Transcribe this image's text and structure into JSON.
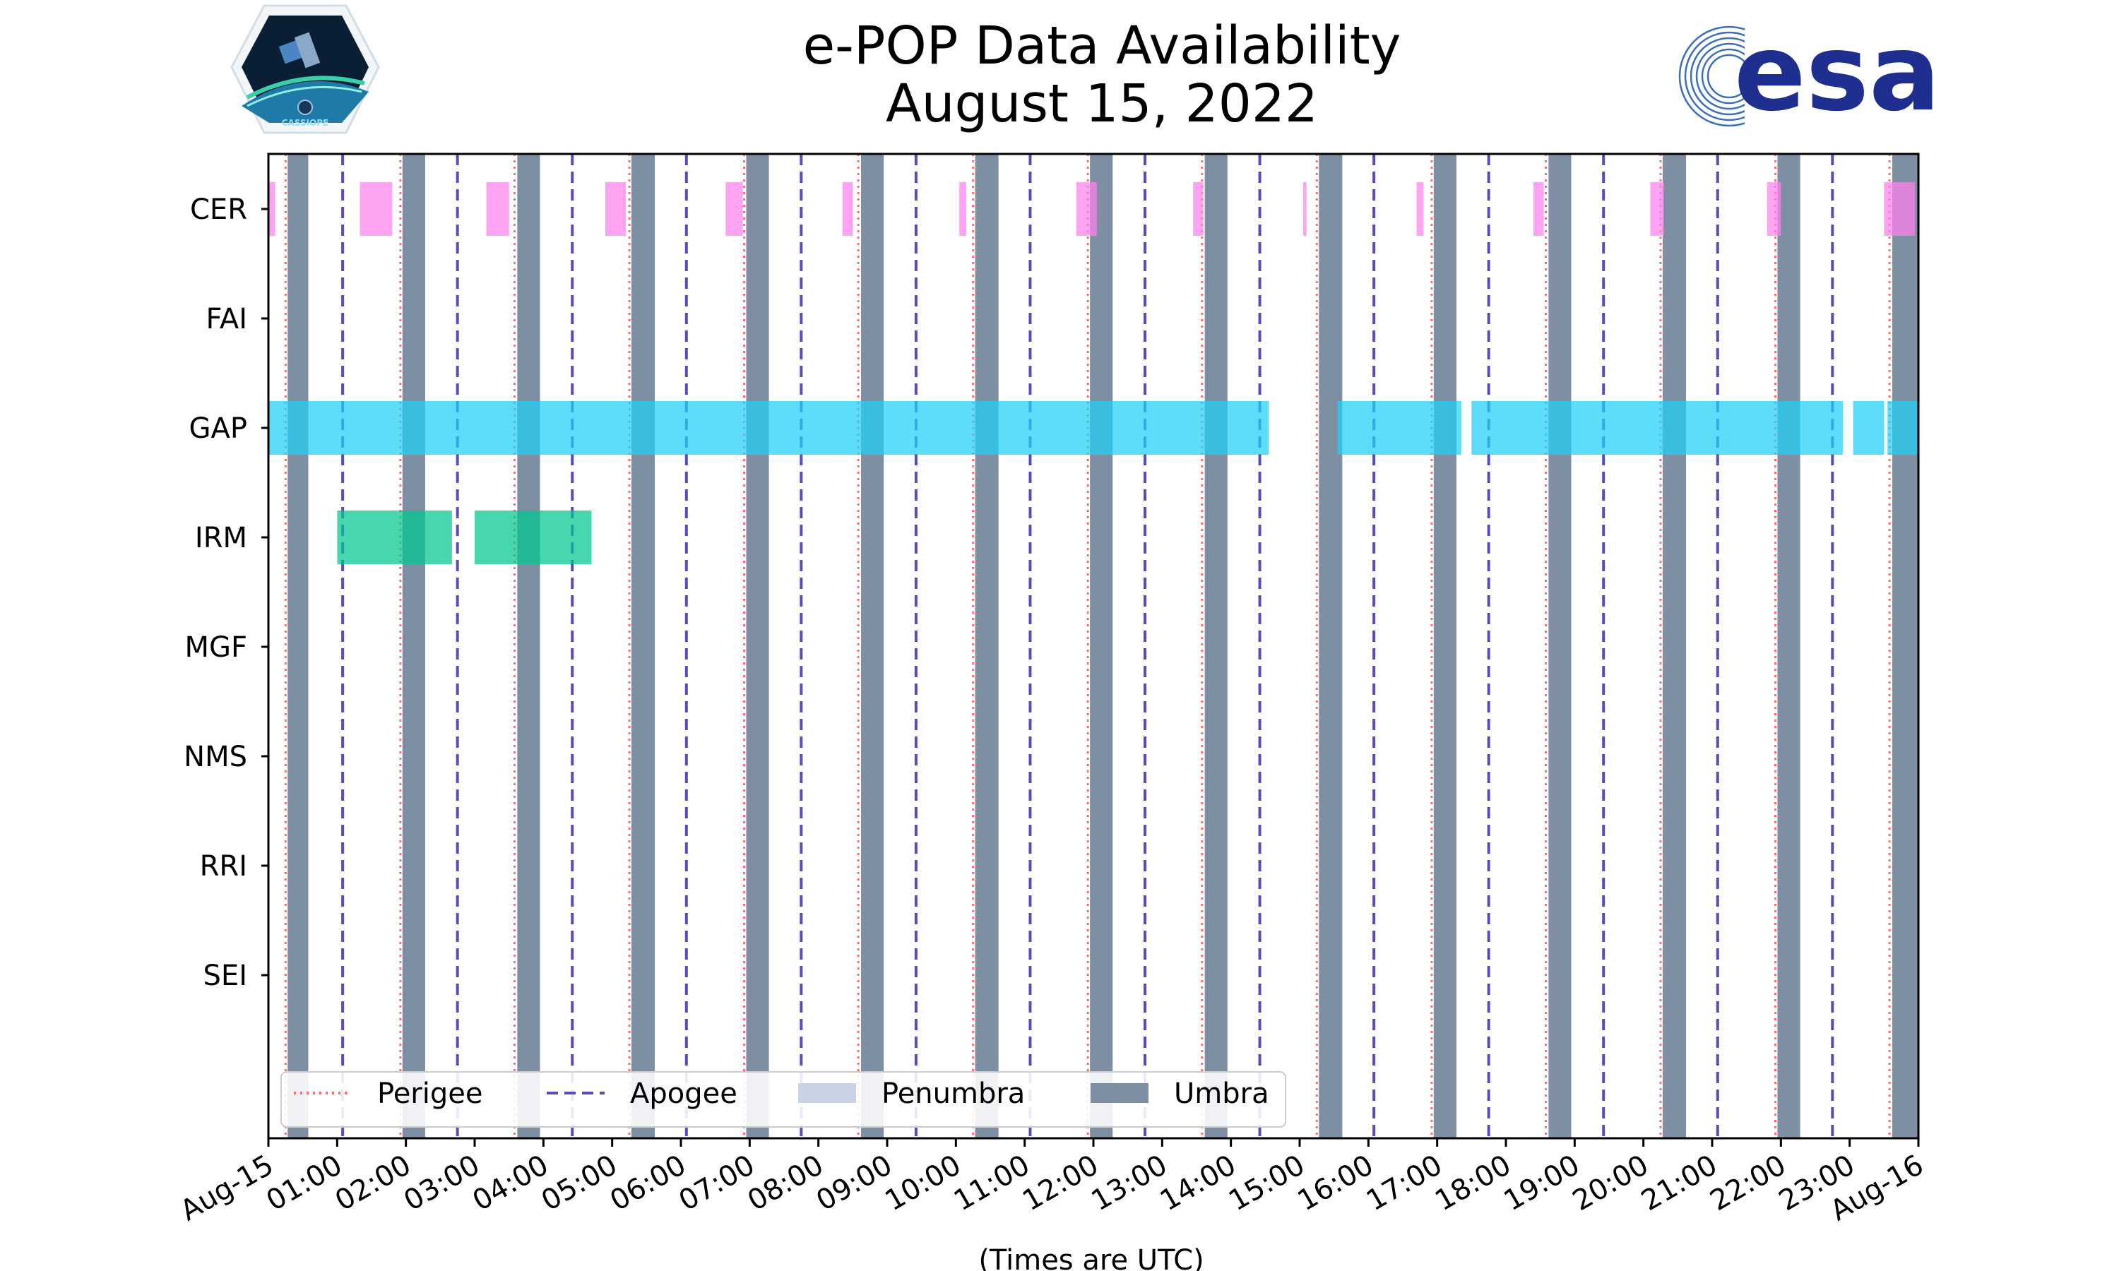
{
  "chart_data": {
    "type": "timeline",
    "title": [
      "e-POP Data Availability",
      "August 15, 2022"
    ],
    "xlabel": "(Times are UTC)",
    "ylabel": "",
    "x_unit": "hours UTC",
    "xlim": [
      0,
      24
    ],
    "x_ticks": [
      {
        "value": 0,
        "label": "Aug-15"
      },
      {
        "value": 1,
        "label": "01:00"
      },
      {
        "value": 2,
        "label": "02:00"
      },
      {
        "value": 3,
        "label": "03:00"
      },
      {
        "value": 4,
        "label": "04:00"
      },
      {
        "value": 5,
        "label": "05:00"
      },
      {
        "value": 6,
        "label": "06:00"
      },
      {
        "value": 7,
        "label": "07:00"
      },
      {
        "value": 8,
        "label": "08:00"
      },
      {
        "value": 9,
        "label": "09:00"
      },
      {
        "value": 10,
        "label": "10:00"
      },
      {
        "value": 11,
        "label": "11:00"
      },
      {
        "value": 12,
        "label": "12:00"
      },
      {
        "value": 13,
        "label": "13:00"
      },
      {
        "value": 14,
        "label": "14:00"
      },
      {
        "value": 15,
        "label": "15:00"
      },
      {
        "value": 16,
        "label": "16:00"
      },
      {
        "value": 17,
        "label": "17:00"
      },
      {
        "value": 18,
        "label": "18:00"
      },
      {
        "value": 19,
        "label": "19:00"
      },
      {
        "value": 20,
        "label": "20:00"
      },
      {
        "value": 21,
        "label": "21:00"
      },
      {
        "value": 22,
        "label": "22:00"
      },
      {
        "value": 23,
        "label": "23:00"
      },
      {
        "value": 24,
        "label": "Aug-16"
      }
    ],
    "categories": [
      "CER",
      "FAI",
      "GAP",
      "IRM",
      "MGF",
      "NMS",
      "RRI",
      "SEI"
    ],
    "series": [
      {
        "name": "CER",
        "color": "#ff80ee",
        "segments": [
          [
            0.0,
            0.1
          ],
          [
            1.33,
            1.8
          ],
          [
            3.17,
            3.5
          ],
          [
            4.9,
            5.2
          ],
          [
            6.65,
            6.9
          ],
          [
            8.35,
            8.5
          ],
          [
            10.05,
            10.15
          ],
          [
            11.75,
            12.05
          ],
          [
            13.45,
            13.6
          ],
          [
            15.05,
            15.1
          ],
          [
            16.7,
            16.8
          ],
          [
            18.4,
            18.55
          ],
          [
            20.1,
            20.3
          ],
          [
            21.8,
            22.0
          ],
          [
            23.5,
            23.95
          ]
        ]
      },
      {
        "name": "FAI",
        "color": "#aaaaaa",
        "segments": []
      },
      {
        "name": "GAP",
        "color": "#20d0f8",
        "segments": [
          [
            0.0,
            14.55
          ],
          [
            15.55,
            17.35
          ],
          [
            17.5,
            22.9
          ],
          [
            23.05,
            23.5
          ],
          [
            23.55,
            24.0
          ]
        ]
      },
      {
        "name": "IRM",
        "color": "#00c890",
        "segments": [
          [
            1.0,
            2.67
          ],
          [
            3.0,
            4.7
          ]
        ]
      },
      {
        "name": "MGF",
        "color": "#aaaaaa",
        "segments": []
      },
      {
        "name": "NMS",
        "color": "#aaaaaa",
        "segments": []
      },
      {
        "name": "RRI",
        "color": "#aaaaaa",
        "segments": []
      },
      {
        "name": "SEI",
        "color": "#aaaaaa",
        "segments": []
      }
    ],
    "perigee": [
      0.25,
      1.92,
      3.58,
      5.25,
      6.92,
      8.58,
      10.25,
      11.92,
      13.58,
      15.25,
      16.92,
      18.58,
      20.25,
      21.92,
      23.58
    ],
    "apogee": [
      1.08,
      2.75,
      4.42,
      6.08,
      7.75,
      9.42,
      11.08,
      12.75,
      14.42,
      16.08,
      17.75,
      19.42,
      21.08,
      22.75
    ],
    "umbra": [
      [
        0.28,
        0.58
      ],
      [
        1.95,
        2.28
      ],
      [
        3.62,
        3.95
      ],
      [
        5.28,
        5.62
      ],
      [
        6.95,
        7.28
      ],
      [
        8.62,
        8.95
      ],
      [
        10.28,
        10.62
      ],
      [
        11.95,
        12.28
      ],
      [
        13.62,
        13.95
      ],
      [
        15.28,
        15.62
      ],
      [
        16.95,
        17.28
      ],
      [
        18.62,
        18.95
      ],
      [
        20.28,
        20.62
      ],
      [
        21.95,
        22.28
      ],
      [
        23.62,
        24.0
      ]
    ],
    "penumbra": [],
    "legend": {
      "placement": "lower-left",
      "entries": [
        {
          "label": "Perigee",
          "color": "#ff6b6b",
          "style": "dotted-line"
        },
        {
          "label": "Apogee",
          "color": "#5b4bb8",
          "style": "dashed-line"
        },
        {
          "label": "Penumbra",
          "color": "#c8d4e6",
          "style": "patch"
        },
        {
          "label": "Umbra",
          "color": "#7f8fa3",
          "style": "patch"
        }
      ]
    }
  },
  "logos": {
    "left_caption": "CASSIOPE",
    "right_text": "esa",
    "right_color": "#1e2f8f"
  }
}
